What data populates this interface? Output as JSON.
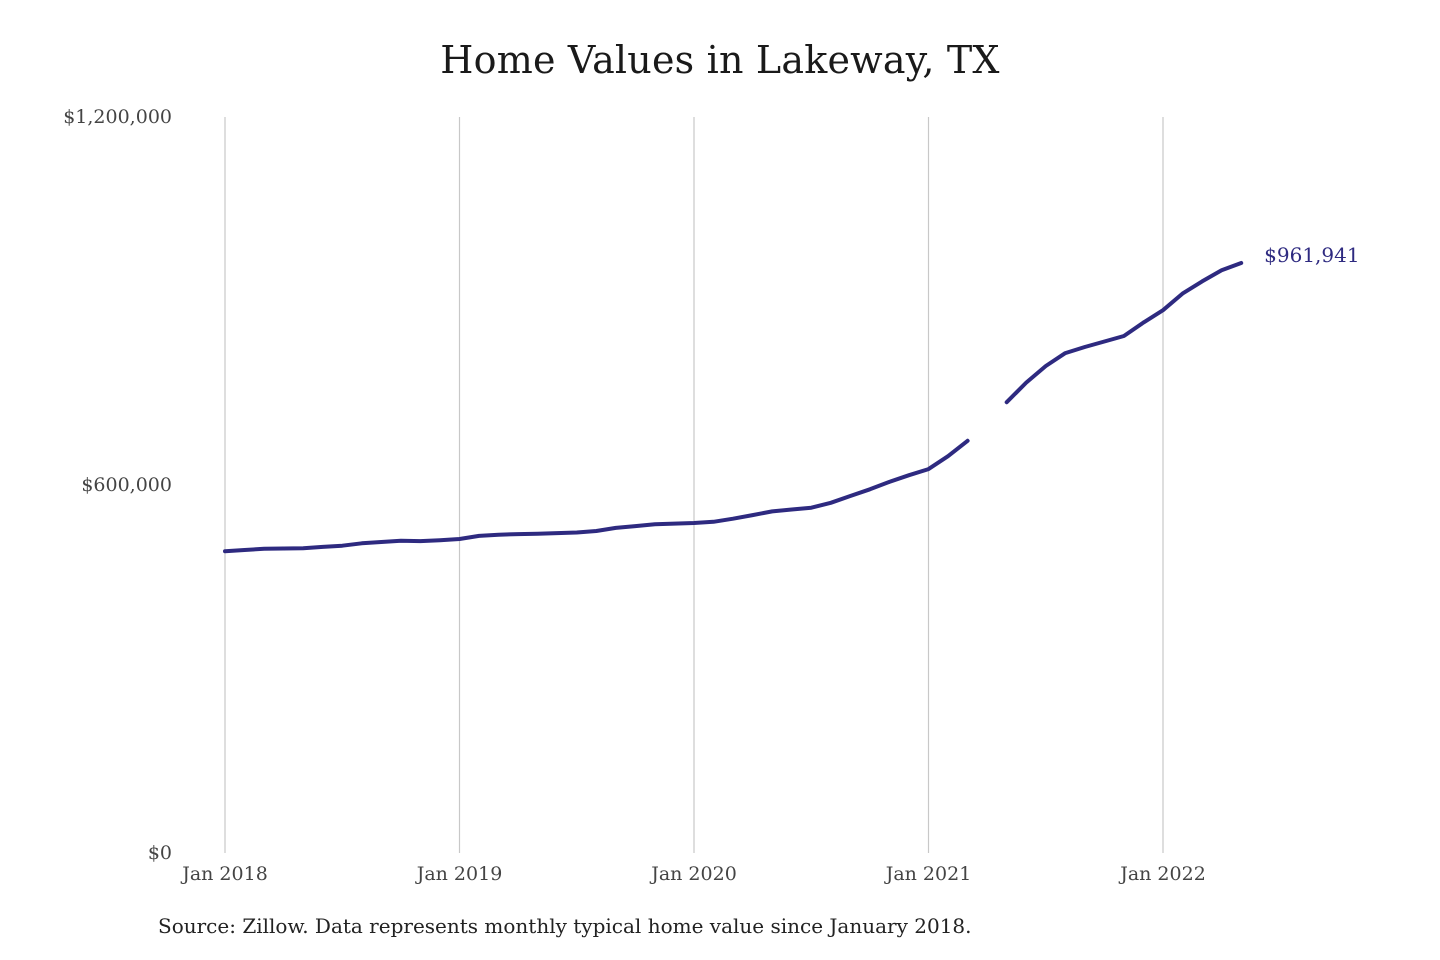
{
  "chart_data": {
    "type": "line",
    "title": "Home Values in Lakeway, TX",
    "xlabel": "",
    "ylabel": "",
    "y_ticks": [
      "$0",
      "$600,000",
      "$1,200,000"
    ],
    "ylim": [
      0,
      1200000
    ],
    "x_ticks": [
      "Jan 2018",
      "Jan 2019",
      "Jan 2020",
      "Jan 2021",
      "Jan 2022"
    ],
    "x_tick_positions": [
      "2018-01",
      "2019-01",
      "2020-01",
      "2021-01",
      "2022-01"
    ],
    "grid": "vertical",
    "legend": "none",
    "line_color": "#2e2a80",
    "gap": [
      "2021-03",
      "2021-05"
    ],
    "end_label": "$961,941",
    "series": [
      {
        "x": [
          "2018-01",
          "2018-02",
          "2018-03",
          "2018-04",
          "2018-05",
          "2018-06",
          "2018-07",
          "2018-08",
          "2018-09",
          "2018-10",
          "2018-11",
          "2018-12",
          "2019-01",
          "2019-02",
          "2019-03",
          "2019-04",
          "2019-05",
          "2019-06",
          "2019-07",
          "2019-08",
          "2019-09",
          "2019-10",
          "2019-11",
          "2019-12",
          "2020-01",
          "2020-02",
          "2020-03",
          "2020-04",
          "2020-05",
          "2020-06",
          "2020-07",
          "2020-08",
          "2020-09",
          "2020-10",
          "2020-11",
          "2020-12",
          "2021-01",
          "2021-02",
          "2021-03",
          "2021-04",
          "2021-05",
          "2021-06",
          "2021-07",
          "2021-08",
          "2021-09",
          "2021-10",
          "2021-11",
          "2021-12",
          "2022-01",
          "2022-02",
          "2022-03",
          "2022-04",
          "2022-05"
        ],
        "values": [
          492000,
          494000,
          496000,
          496500,
          497000,
          499000,
          501000,
          505000,
          507000,
          509000,
          508500,
          510000,
          512000,
          517000,
          519000,
          520000,
          520500,
          521500,
          522500,
          525000,
          530000,
          533000,
          536000,
          537000,
          538000,
          540000,
          545000,
          551000,
          557000,
          560000,
          563000,
          571000,
          582000,
          593000,
          605000,
          616000,
          626000,
          647000,
          672000,
          null,
          735000,
          767000,
          794000,
          815000,
          825000,
          834000,
          843000,
          865000,
          885000,
          912000,
          932000,
          950000,
          961941
        ]
      }
    ]
  },
  "source": "Source: Zillow. Data represents monthly typical home value since January 2018."
}
